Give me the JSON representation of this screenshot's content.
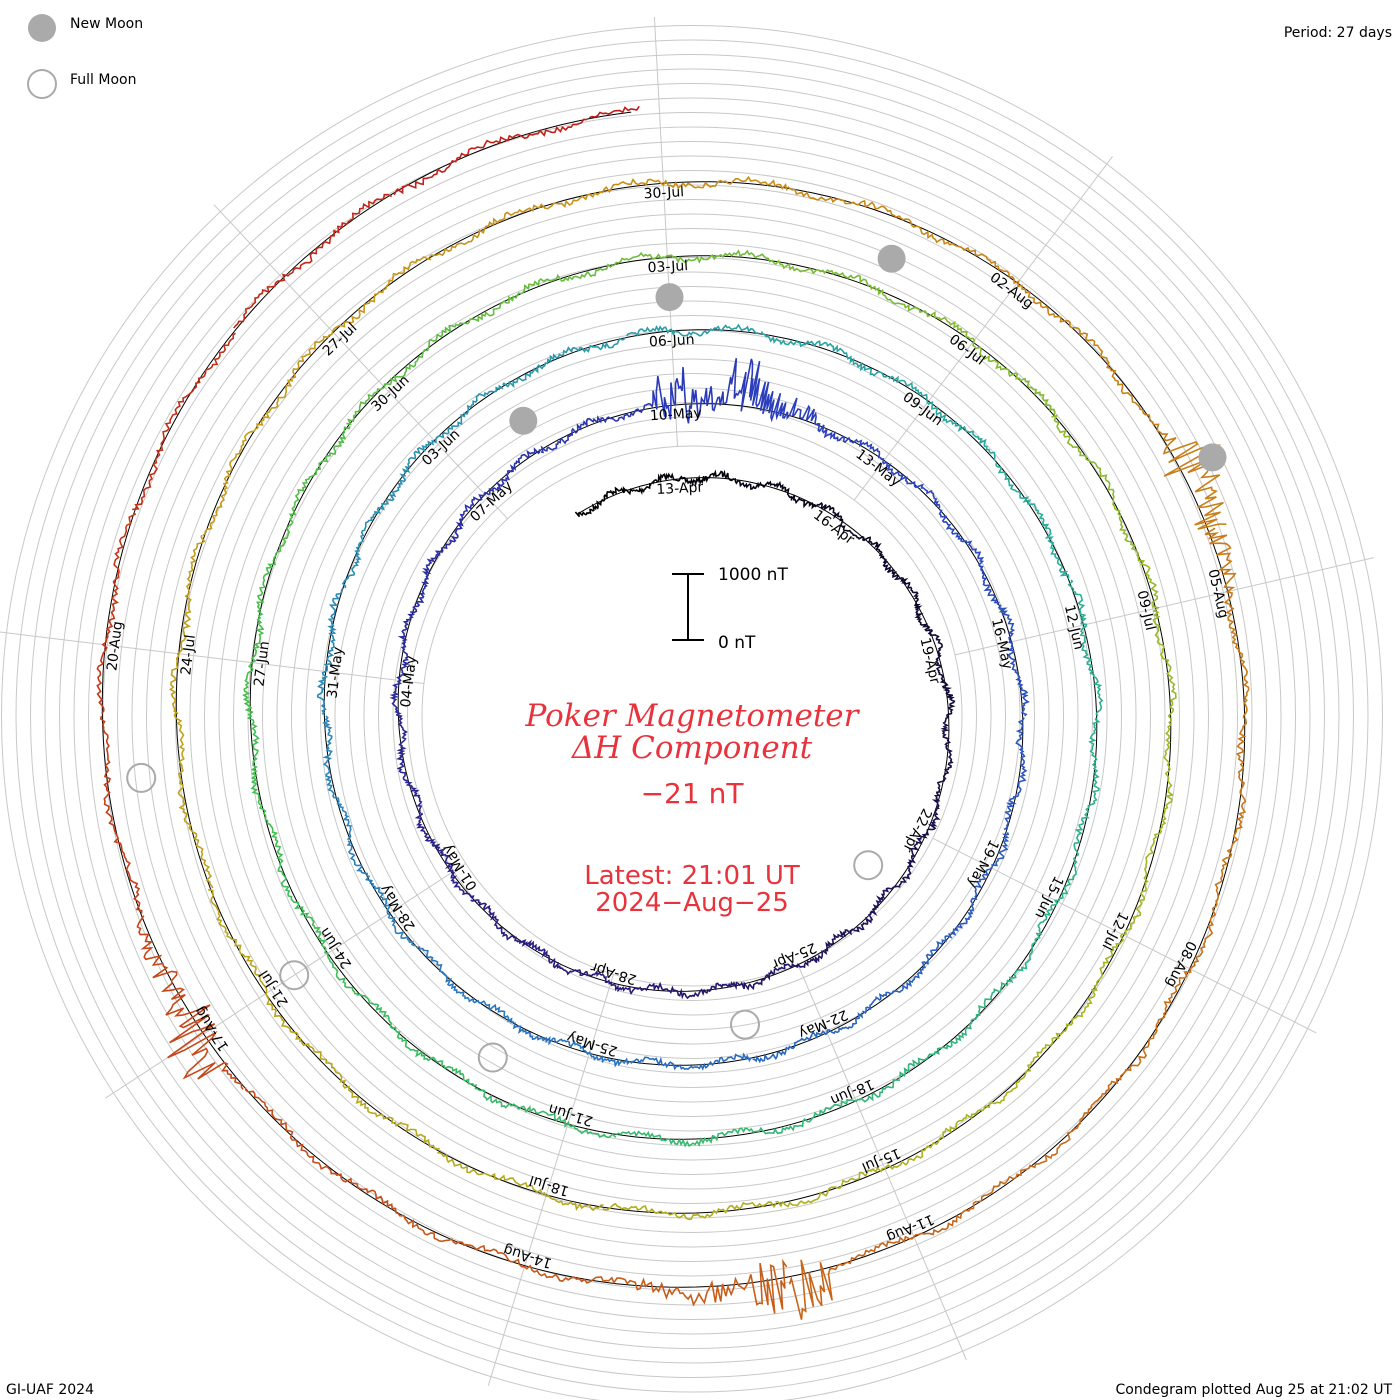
{
  "legend": {
    "new_moon_label": "New Moon",
    "full_moon_label": "Full Moon",
    "new_moon_color": "#aaaaaa",
    "full_moon_color": "#aaaaaa"
  },
  "period_label": "Period: 27 days",
  "footer": {
    "left": "GI-UAF 2024",
    "right": "Condegram plotted Aug 25 at 21:02 UT"
  },
  "scale_bar": {
    "top_label": "1000 nT",
    "bottom_label": "0 nT"
  },
  "title": {
    "line1": "Poker Magnetometer",
    "line2": "ΔH Component",
    "value": "−21 nT",
    "latest_time": "Latest: 21:01 UT",
    "latest_date": "2024−Aug−25"
  },
  "chart_data": {
    "type": "line",
    "subtype": "condegram (spiral time series)",
    "title": "Poker Magnetometer ΔH Component",
    "latest_value_nT": -21,
    "latest_time": "2024-08-25 21:01 UT",
    "period_days": 27,
    "scale_nT": [
      0,
      1000
    ],
    "start_date": "2024-04-11",
    "end_date": "2024-08-25",
    "date_labels": [
      {
        "date": "13-Apr",
        "ring": 0
      },
      {
        "date": "16-Apr",
        "ring": 0
      },
      {
        "date": "19-Apr",
        "ring": 0
      },
      {
        "date": "22-Apr",
        "ring": 0
      },
      {
        "date": "25-Apr",
        "ring": 0
      },
      {
        "date": "28-Apr",
        "ring": 0
      },
      {
        "date": "01-May",
        "ring": 0
      },
      {
        "date": "04-May",
        "ring": 0
      },
      {
        "date": "07-May",
        "ring": 0
      },
      {
        "date": "10-May",
        "ring": 1
      },
      {
        "date": "13-May",
        "ring": 1
      },
      {
        "date": "16-May",
        "ring": 1
      },
      {
        "date": "19-May",
        "ring": 1
      },
      {
        "date": "22-May",
        "ring": 1
      },
      {
        "date": "25-May",
        "ring": 1
      },
      {
        "date": "28-May",
        "ring": 1
      },
      {
        "date": "31-May",
        "ring": 1
      },
      {
        "date": "03-Jun",
        "ring": 1
      },
      {
        "date": "06-Jun",
        "ring": 2
      },
      {
        "date": "09-Jun",
        "ring": 2
      },
      {
        "date": "12-Jun",
        "ring": 2
      },
      {
        "date": "15-Jun",
        "ring": 2
      },
      {
        "date": "18-Jun",
        "ring": 2
      },
      {
        "date": "21-Jun",
        "ring": 2
      },
      {
        "date": "24-Jun",
        "ring": 2
      },
      {
        "date": "27-Jun",
        "ring": 2
      },
      {
        "date": "30-Jun",
        "ring": 2
      },
      {
        "date": "03-Jul",
        "ring": 3
      },
      {
        "date": "06-Jul",
        "ring": 3
      },
      {
        "date": "09-Jul",
        "ring": 3
      },
      {
        "date": "12-Jul",
        "ring": 3
      },
      {
        "date": "15-Jul",
        "ring": 3
      },
      {
        "date": "18-Jul",
        "ring": 3
      },
      {
        "date": "21-Jul",
        "ring": 3
      },
      {
        "date": "24-Jul",
        "ring": 3
      },
      {
        "date": "27-Jul",
        "ring": 3
      },
      {
        "date": "30-Jul",
        "ring": 4
      },
      {
        "date": "02-Aug",
        "ring": 4
      },
      {
        "date": "05-Aug",
        "ring": 4
      },
      {
        "date": "08-Aug",
        "ring": 4
      },
      {
        "date": "11-Aug",
        "ring": 4
      },
      {
        "date": "14-Aug",
        "ring": 4
      },
      {
        "date": "17-Aug",
        "ring": 4
      },
      {
        "date": "20-Aug",
        "ring": 4
      }
    ],
    "new_moons": [
      "2024-05-08",
      "2024-06-06",
      "2024-07-05",
      "2024-08-04"
    ],
    "full_moons": [
      "2024-04-23",
      "2024-05-23",
      "2024-06-22",
      "2024-07-21",
      "2024-08-19"
    ],
    "disturbances": [
      {
        "date": "2024-05-10",
        "description": "major storm, up to ~1000 nT excursions"
      },
      {
        "date": "2024-05-11",
        "description": "major storm continued"
      },
      {
        "date": "2024-08-04",
        "description": "storm, large negative excursions"
      },
      {
        "date": "2024-08-12",
        "description": "storm"
      },
      {
        "date": "2024-08-17",
        "description": "disturbance"
      }
    ]
  }
}
